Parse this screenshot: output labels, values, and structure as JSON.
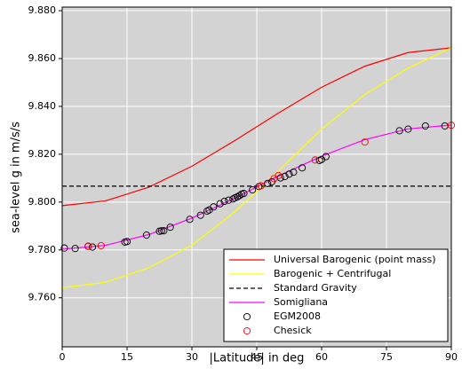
{
  "chart_data": {
    "type": "line",
    "x_label": "|Latitude| in deg",
    "y_label": "sea-level g in m/s/s",
    "xlim": [
      0,
      90
    ],
    "ylim": [
      9.7395,
      9.8815
    ],
    "xticks": [
      0,
      15,
      30,
      45,
      60,
      75,
      90
    ],
    "yticks": [
      {
        "value": 9.76,
        "label": "9.760"
      },
      {
        "value": 9.78,
        "label": "9.780"
      },
      {
        "value": 9.8,
        "label": "9.800"
      },
      {
        "value": 9.82,
        "label": "9.820"
      },
      {
        "value": 9.84,
        "label": "9.840"
      },
      {
        "value": 9.86,
        "label": "9.860"
      },
      {
        "value": 9.88,
        "label": "9.880"
      }
    ],
    "grid": true,
    "legend": "lower right",
    "series": [
      {
        "name": "Universal Barogenic (point mass)",
        "color": "#ff0000",
        "style": "solid",
        "x": [
          0,
          10,
          20,
          30,
          40,
          50,
          60,
          70,
          80,
          90
        ],
        "values": [
          9.7985,
          9.8005,
          9.8062,
          9.815,
          9.8258,
          9.8372,
          9.848,
          9.8568,
          9.8625,
          9.8645
        ]
      },
      {
        "name": "Barogenic + Centrifugal",
        "color": "#ffff00",
        "style": "solid",
        "x": [
          0,
          10,
          20,
          30,
          40,
          45,
          50,
          60,
          70,
          80,
          90
        ],
        "values": [
          9.7642,
          9.7665,
          9.7725,
          9.782,
          9.796,
          9.8045,
          9.813,
          9.8305,
          9.845,
          9.856,
          9.8645
        ]
      },
      {
        "name": "Standard Gravity",
        "color": "#000000",
        "style": "dashed",
        "x": [
          0,
          90
        ],
        "values": [
          9.80665,
          9.80665
        ]
      },
      {
        "name": "Somigliana",
        "color": "#ff00ff",
        "style": "solid",
        "x": [
          0,
          10,
          20,
          30,
          40,
          50,
          60,
          70,
          80,
          90
        ],
        "values": [
          9.7803,
          9.7819,
          9.7864,
          9.7933,
          9.8017,
          9.8109,
          9.8192,
          9.8261,
          9.8306,
          9.8322
        ]
      },
      {
        "name": "EGM2008",
        "color": "#000000",
        "style": "none",
        "marker": "circle",
        "x": [
          0.5,
          3,
          6,
          7,
          14.5,
          15,
          19.5,
          22.5,
          23,
          23.5,
          25,
          29.5,
          32,
          33.5,
          34,
          35,
          36.5,
          37.5,
          38.5,
          39.5,
          40,
          40.5,
          41,
          41.5,
          42,
          44,
          45.5,
          47.5,
          48.5,
          50.5,
          51.5,
          52.5,
          53.5,
          55.5,
          59.5,
          60,
          61,
          78,
          80,
          84,
          88.5
        ],
        "values": [
          9.7808,
          9.7806,
          9.7815,
          9.7812,
          9.7833,
          9.7835,
          9.7862,
          9.7878,
          9.788,
          9.788,
          9.7895,
          9.7928,
          9.7945,
          9.7962,
          9.7967,
          9.798,
          9.7993,
          9.8003,
          9.8008,
          9.8013,
          9.8018,
          9.8022,
          9.8027,
          9.8033,
          9.8036,
          9.8051,
          9.8065,
          9.8078,
          9.8085,
          9.8101,
          9.8107,
          9.8117,
          9.8125,
          9.8143,
          9.8174,
          9.8178,
          9.819,
          9.8298,
          9.8305,
          9.8318,
          9.8318
        ]
      },
      {
        "name": "Chesick",
        "color": "#ff0000",
        "style": "none",
        "marker": "circle",
        "x": [
          6,
          9,
          46,
          49,
          50,
          58.5,
          70,
          90
        ],
        "values": [
          9.7816,
          9.7818,
          9.8068,
          9.8098,
          9.8111,
          9.8176,
          9.8251,
          9.8321
        ]
      }
    ]
  }
}
